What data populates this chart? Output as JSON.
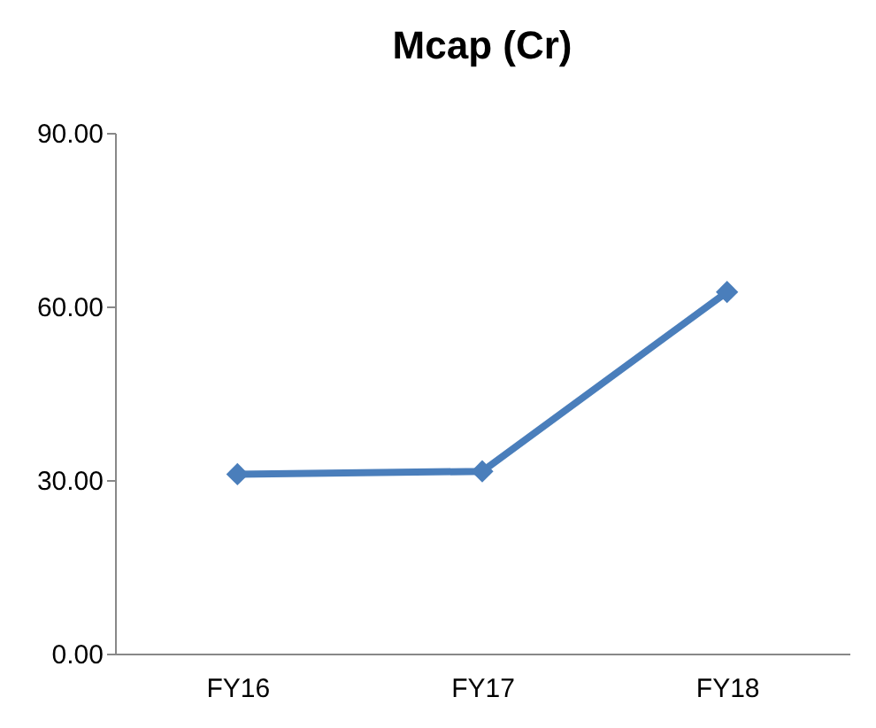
{
  "chart_data": {
    "type": "line",
    "title": "Mcap  (Cr)",
    "categories": [
      "FY16",
      "FY17",
      "FY18"
    ],
    "series": [
      {
        "color": "#4a7ebb",
        "values": [
          31.0,
          31.5,
          62.5
        ]
      }
    ],
    "ylim": [
      0,
      90
    ],
    "yticks": [
      {
        "value": 0,
        "label": "0.00"
      },
      {
        "value": 30,
        "label": "30.00"
      },
      {
        "value": 60,
        "label": "60.00"
      },
      {
        "value": 90,
        "label": "90.00"
      }
    ],
    "marker": "diamond",
    "line_style": "solid",
    "grid": false
  }
}
